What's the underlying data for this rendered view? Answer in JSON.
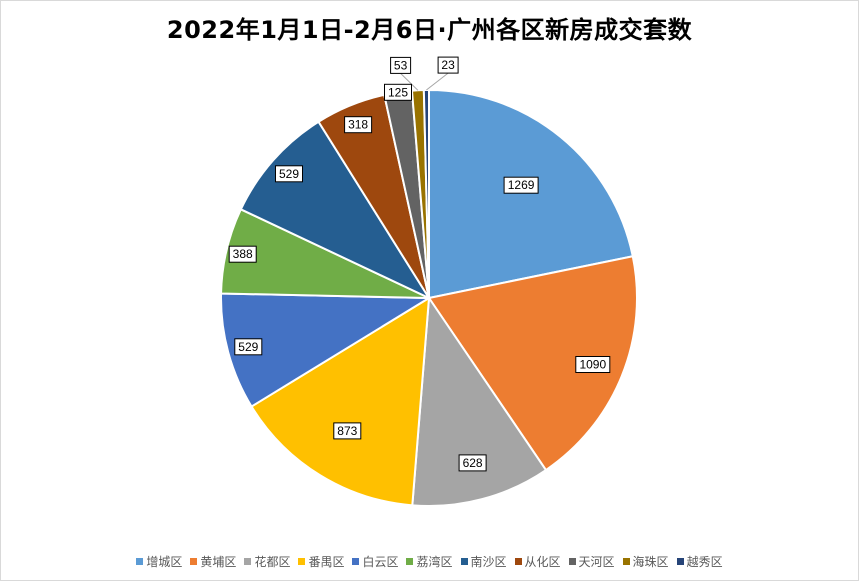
{
  "chart_data": {
    "type": "pie",
    "title": "2022年1月1日-2月6日·广州各区新房成交套数",
    "categories": [
      "增城区",
      "黄埔区",
      "花都区",
      "番禺区",
      "白云区",
      "荔湾区",
      "南沙区",
      "从化区",
      "天河区",
      "海珠区",
      "越秀区"
    ],
    "values": [
      1269,
      1090,
      628,
      873,
      529,
      388,
      529,
      318,
      125,
      53,
      23
    ],
    "colors": [
      "#5b9bd5",
      "#ed7d31",
      "#a5a5a5",
      "#ffc000",
      "#4472c4",
      "#70ad47",
      "#255e91",
      "#9e480e",
      "#636363",
      "#997300",
      "#264478"
    ],
    "data_labels": true,
    "legend_position": "bottom"
  }
}
